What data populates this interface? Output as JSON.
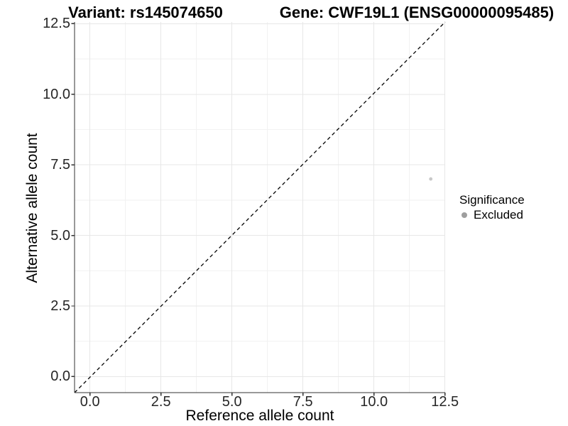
{
  "chart_data": {
    "type": "scatter",
    "title_left": "Variant: rs145074650",
    "title_right": "Gene: CWF19L1 (ENSG00000095485)",
    "xlabel": "Reference allele count",
    "ylabel": "Alternative allele count",
    "x_ticks": {
      "values": [
        0,
        2.5,
        5,
        7.5,
        10,
        12.5
      ],
      "labels": [
        "0.0",
        "2.5",
        "5.0",
        "7.5",
        "10.0",
        "12.5"
      ]
    },
    "y_ticks": {
      "values": [
        0,
        2.5,
        5,
        7.5,
        10,
        12.5
      ],
      "labels": [
        "0.0",
        "2.5",
        "5.0",
        "7.5",
        "10.0",
        "12.5"
      ]
    },
    "x_minor": [
      1.25,
      3.75,
      6.25,
      8.75,
      11.25
    ],
    "y_minor": [
      1.25,
      3.75,
      6.25,
      8.75,
      11.25
    ],
    "xlim": [
      -0.55,
      12.55
    ],
    "ylim": [
      -0.57,
      12.56
    ],
    "grid": true,
    "legend_position": "right",
    "series": [
      {
        "name": "Excluded",
        "color": "#c8c8c8",
        "point_radius": 2.4,
        "points": [
          {
            "x": 12,
            "y": 7
          }
        ]
      }
    ],
    "reference_line": {
      "slope": 1,
      "intercept": 0,
      "style": "dashed",
      "color": "#000000"
    },
    "legend": {
      "title": "Significance",
      "entries": [
        {
          "label": "Excluded",
          "key_color": "#9e9e9e"
        }
      ]
    },
    "colors": {
      "background": "#ffffff",
      "grid_major": "#e7e7e7",
      "grid_minor": "#f2f2f2",
      "axis": "#333333",
      "tick_text": "#262626"
    }
  }
}
